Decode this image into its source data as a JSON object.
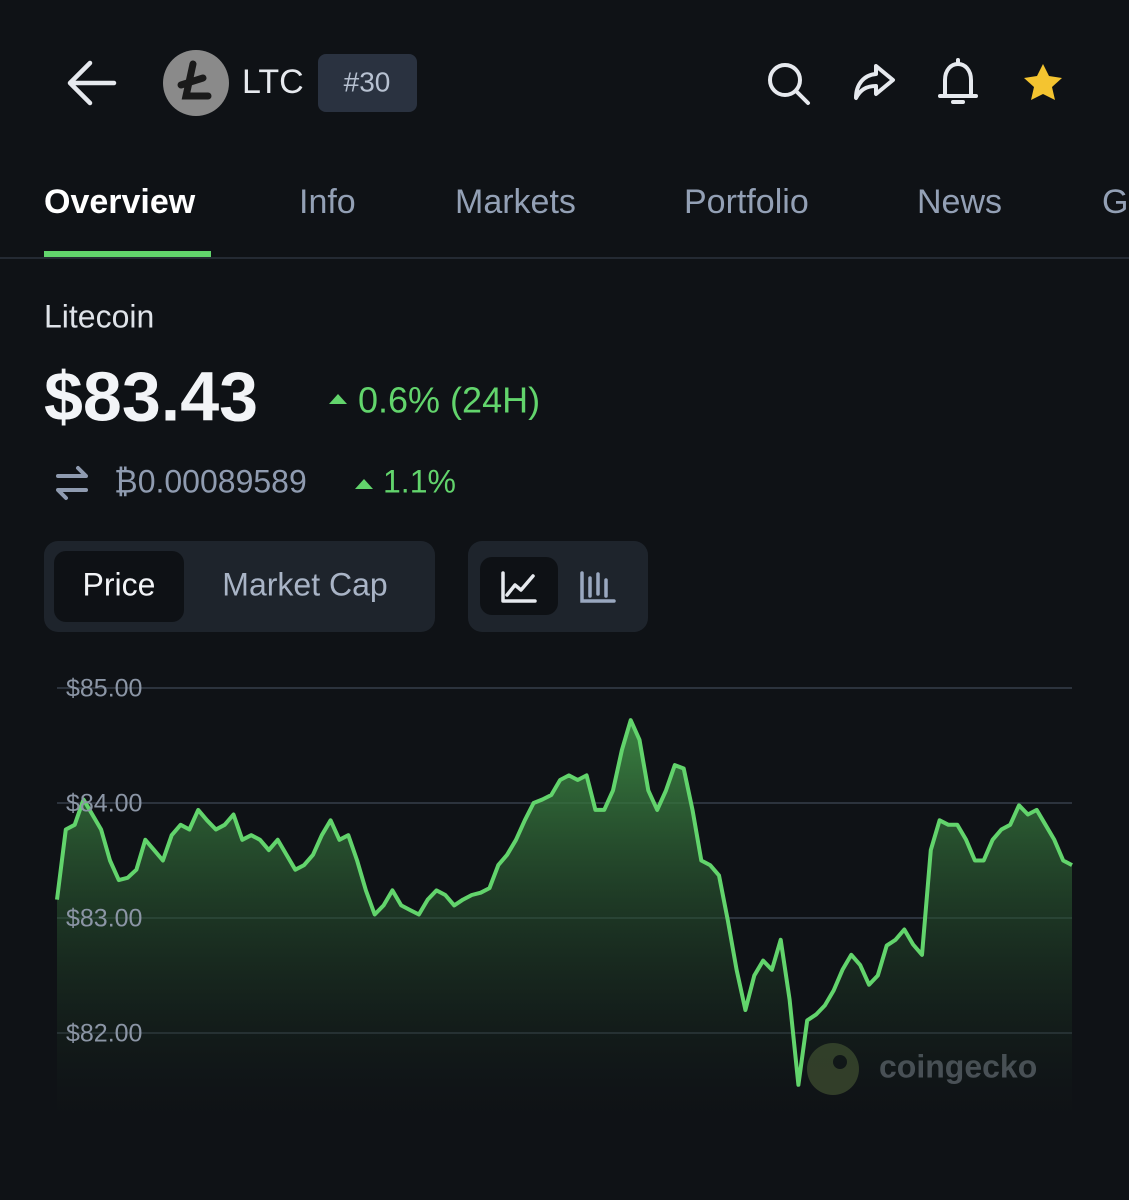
{
  "header": {
    "symbol": "LTC",
    "rank": "#30"
  },
  "tabs": [
    "Overview",
    "Info",
    "Markets",
    "Portfolio",
    "News",
    "G"
  ],
  "coin": {
    "name": "Litecoin",
    "price": "$83.43",
    "change_24h": "0.6% (24H)",
    "btc_price": "₿0.00089589",
    "btc_change": "1.1%"
  },
  "chart_toggle": [
    "Price",
    "Market Cap"
  ],
  "watermark": "coingecko",
  "chart_data": {
    "type": "line",
    "color": "#62d46c",
    "grid": true,
    "ylim": [
      81.25,
      85
    ],
    "yticks": [
      {
        "value": 85,
        "label": "$85.00"
      },
      {
        "value": 84,
        "label": "$84.00"
      },
      {
        "value": 83,
        "label": "$83.00"
      },
      {
        "value": 82,
        "label": "$82.00"
      }
    ],
    "values": [
      83.16,
      83.77,
      83.81,
      84.03,
      83.9,
      83.77,
      83.5,
      83.33,
      83.35,
      83.42,
      83.68,
      83.59,
      83.5,
      83.72,
      83.81,
      83.77,
      83.94,
      83.85,
      83.77,
      83.81,
      83.9,
      83.68,
      83.72,
      83.68,
      83.59,
      83.68,
      83.55,
      83.42,
      83.46,
      83.55,
      83.72,
      83.85,
      83.68,
      83.72,
      83.5,
      83.24,
      83.03,
      83.11,
      83.24,
      83.11,
      83.07,
      83.03,
      83.16,
      83.24,
      83.2,
      83.11,
      83.16,
      83.2,
      83.22,
      83.26,
      83.46,
      83.55,
      83.68,
      83.85,
      84.0,
      84.03,
      84.07,
      84.2,
      84.24,
      84.2,
      84.24,
      83.94,
      83.94,
      84.11,
      84.46,
      84.72,
      84.55,
      84.11,
      83.94,
      84.11,
      84.33,
      84.3,
      83.94,
      83.5,
      83.46,
      83.37,
      82.98,
      82.55,
      82.2,
      82.5,
      82.63,
      82.55,
      82.81,
      82.29,
      81.55,
      82.11,
      82.16,
      82.24,
      82.37,
      82.55,
      82.68,
      82.59,
      82.42,
      82.5,
      82.76,
      82.81,
      82.9,
      82.77,
      82.68,
      83.59,
      83.85,
      83.81,
      83.81,
      83.68,
      83.5,
      83.5,
      83.68,
      83.77,
      83.81,
      83.98,
      83.9,
      83.94,
      83.81,
      83.68,
      83.5,
      83.46
    ]
  }
}
